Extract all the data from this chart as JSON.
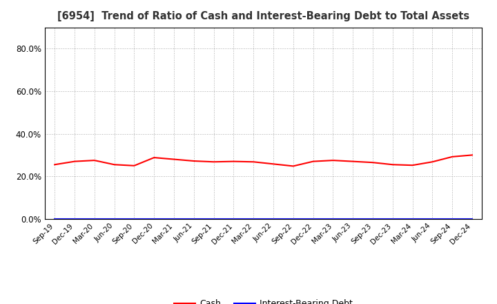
{
  "title": "[6954]  Trend of Ratio of Cash and Interest-Bearing Debt to Total Assets",
  "title_fontsize": 10.5,
  "x_labels": [
    "Sep-19",
    "Dec-19",
    "Mar-20",
    "Jun-20",
    "Sep-20",
    "Dec-20",
    "Mar-21",
    "Jun-21",
    "Sep-21",
    "Dec-21",
    "Mar-22",
    "Jun-22",
    "Sep-22",
    "Dec-22",
    "Mar-23",
    "Jun-23",
    "Sep-23",
    "Dec-23",
    "Mar-24",
    "Jun-24",
    "Sep-24",
    "Dec-24"
  ],
  "cash": [
    0.255,
    0.27,
    0.275,
    0.255,
    0.25,
    0.288,
    0.28,
    0.272,
    0.268,
    0.27,
    0.268,
    0.258,
    0.248,
    0.27,
    0.275,
    0.27,
    0.265,
    0.255,
    0.252,
    0.268,
    0.292,
    0.3
  ],
  "interest_bearing_debt": [
    0.0,
    0.0,
    0.0,
    0.0,
    0.0,
    0.0,
    0.0,
    0.0,
    0.0,
    0.0,
    0.0,
    0.0,
    0.0,
    0.0,
    0.0,
    0.0,
    0.0,
    0.0,
    0.0,
    0.0,
    0.0,
    0.0
  ],
  "cash_color": "#ff0000",
  "debt_color": "#0000ff",
  "ylim": [
    0,
    0.9
  ],
  "yticks": [
    0.0,
    0.2,
    0.4,
    0.6,
    0.8
  ],
  "ytick_labels": [
    "0.0%",
    "20.0%",
    "40.0%",
    "60.0%",
    "80.0%"
  ],
  "bg_color": "#ffffff",
  "plot_bg_color": "#ffffff",
  "grid_color": "#aaaaaa",
  "legend_cash": "Cash",
  "legend_debt": "Interest-Bearing Debt",
  "line_width": 1.5
}
